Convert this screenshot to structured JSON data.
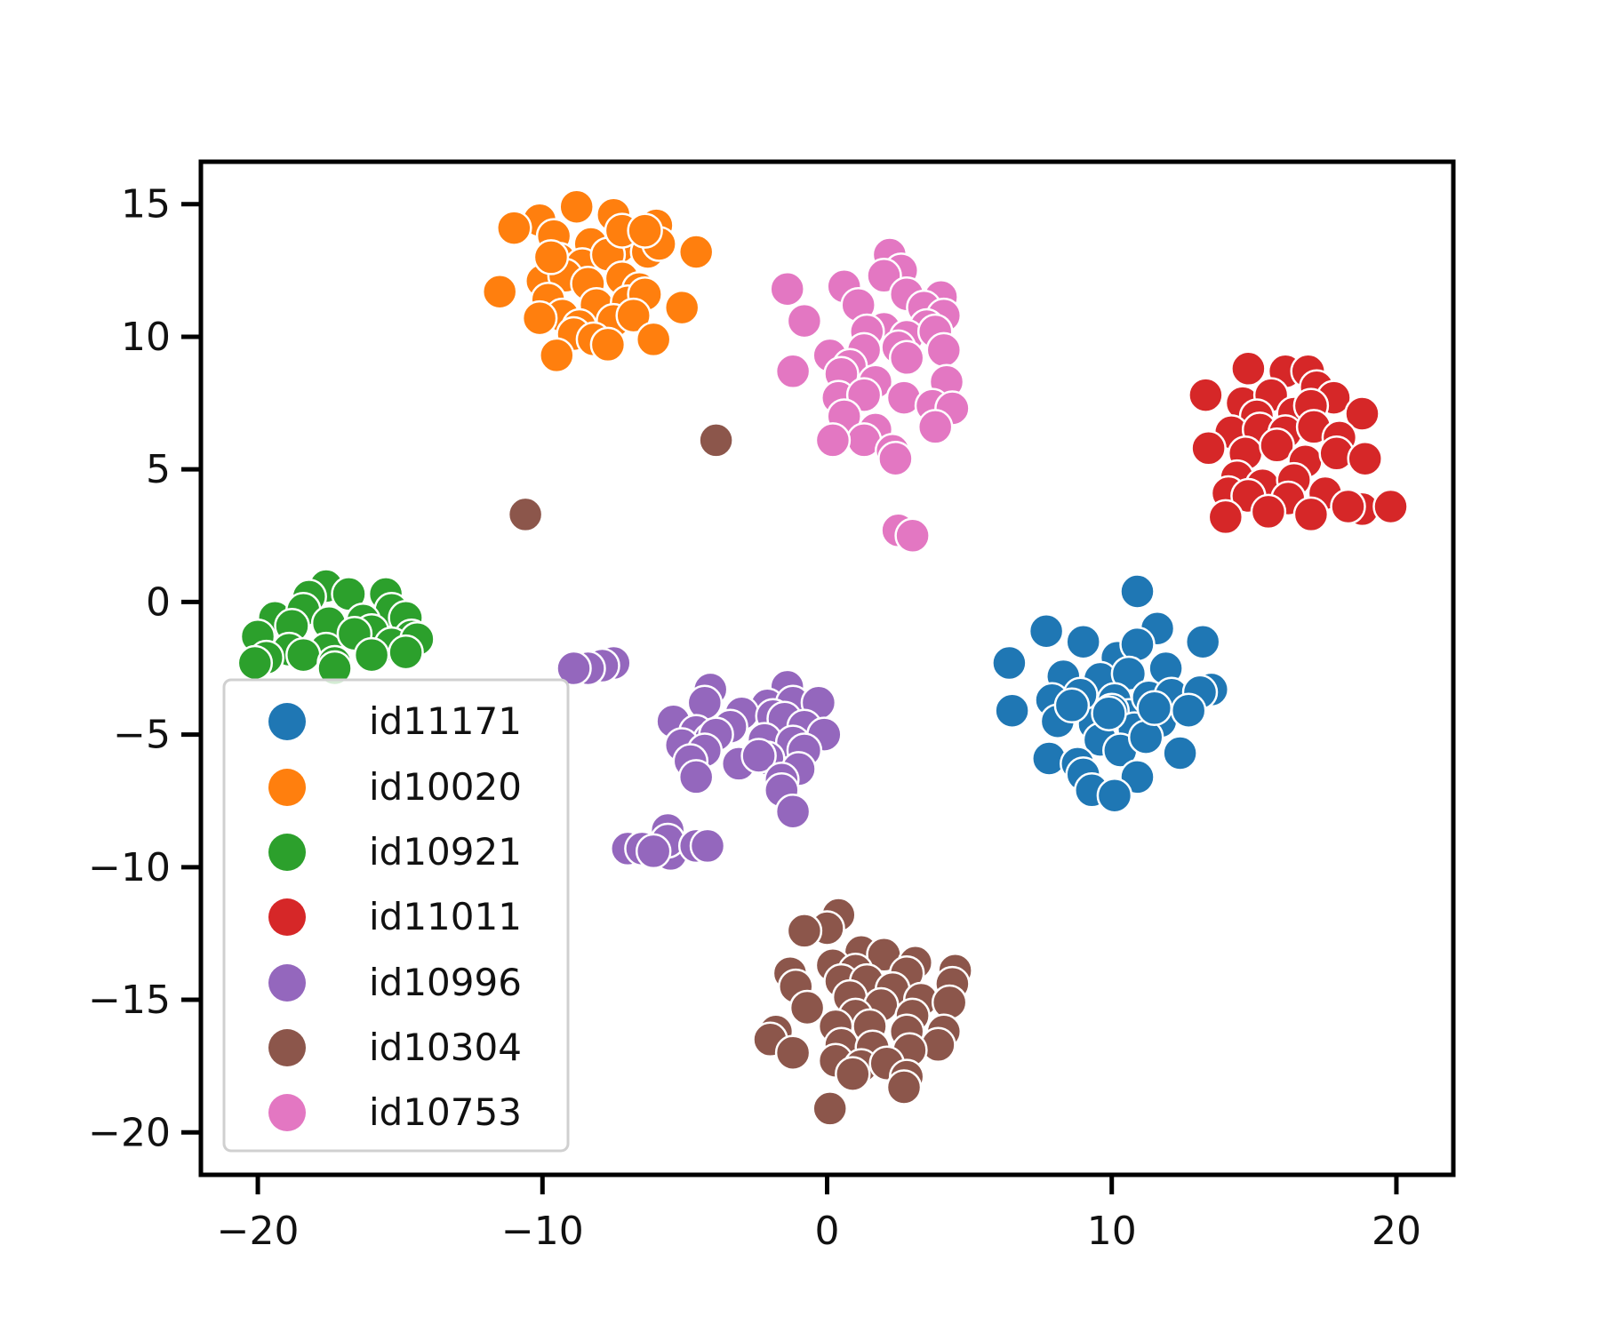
{
  "chart_data": {
    "type": "scatter",
    "title": "",
    "xlabel": "",
    "ylabel": "",
    "xlim": [
      -22,
      22
    ],
    "ylim": [
      -21.6,
      16.6
    ],
    "xticks": [
      -20,
      -10,
      0,
      10,
      20
    ],
    "yticks": [
      15,
      10,
      5,
      0,
      -5,
      -10,
      -15,
      -20
    ],
    "xtick_labels": [
      "−20",
      "−10",
      "0",
      "10",
      "20"
    ],
    "ytick_labels": [
      "15",
      "10",
      "5",
      "0",
      "−5",
      "−10",
      "−15",
      "−20"
    ],
    "grid": false,
    "legend_position": "lower-left",
    "series": [
      {
        "name": "id11171",
        "color": "#1f77b4",
        "points": [
          [
            10.9,
            0.4
          ],
          [
            11.6,
            -1.0
          ],
          [
            13.2,
            -1.5
          ],
          [
            7.7,
            -1.1
          ],
          [
            9.0,
            -1.5
          ],
          [
            10.2,
            -2.1
          ],
          [
            10.9,
            -1.6
          ],
          [
            6.4,
            -2.3
          ],
          [
            8.3,
            -2.8
          ],
          [
            9.6,
            -2.9
          ],
          [
            10.6,
            -2.7
          ],
          [
            11.9,
            -2.5
          ],
          [
            13.5,
            -3.3
          ],
          [
            7.9,
            -3.7
          ],
          [
            8.9,
            -3.5
          ],
          [
            10.1,
            -3.7
          ],
          [
            10.6,
            -4.3
          ],
          [
            11.3,
            -3.6
          ],
          [
            12.1,
            -3.5
          ],
          [
            13.1,
            -3.4
          ],
          [
            6.5,
            -4.1
          ],
          [
            8.1,
            -4.5
          ],
          [
            9.4,
            -4.6
          ],
          [
            10.0,
            -4.1
          ],
          [
            10.8,
            -4.8
          ],
          [
            11.7,
            -4.5
          ],
          [
            12.7,
            -4.1
          ],
          [
            9.6,
            -5.2
          ],
          [
            10.3,
            -5.6
          ],
          [
            11.2,
            -5.1
          ],
          [
            12.4,
            -5.7
          ],
          [
            7.8,
            -5.9
          ],
          [
            8.8,
            -6.1
          ],
          [
            9.0,
            -6.5
          ],
          [
            10.9,
            -6.6
          ],
          [
            9.3,
            -7.1
          ],
          [
            10.1,
            -7.3
          ],
          [
            9.9,
            -4.2
          ],
          [
            8.6,
            -3.9
          ],
          [
            11.5,
            -4.0
          ]
        ]
      },
      {
        "name": "id10020",
        "color": "#ff7f0e",
        "points": [
          [
            -8.8,
            14.9
          ],
          [
            -7.5,
            14.6
          ],
          [
            -10.1,
            14.4
          ],
          [
            -9.6,
            13.8
          ],
          [
            -6.0,
            14.2
          ],
          [
            -11.0,
            14.1
          ],
          [
            -8.3,
            13.5
          ],
          [
            -7.3,
            13.4
          ],
          [
            -6.3,
            13.2
          ],
          [
            -5.9,
            13.5
          ],
          [
            -4.6,
            13.2
          ],
          [
            -9.4,
            12.9
          ],
          [
            -8.6,
            12.7
          ],
          [
            -7.7,
            13.1
          ],
          [
            -10.0,
            12.1
          ],
          [
            -9.2,
            12.3
          ],
          [
            -8.4,
            12.0
          ],
          [
            -7.2,
            12.2
          ],
          [
            -6.6,
            11.8
          ],
          [
            -11.5,
            11.7
          ],
          [
            -9.8,
            11.4
          ],
          [
            -8.1,
            11.2
          ],
          [
            -7.0,
            11.3
          ],
          [
            -6.4,
            11.6
          ],
          [
            -5.1,
            11.1
          ],
          [
            -9.3,
            10.8
          ],
          [
            -8.7,
            10.4
          ],
          [
            -7.5,
            10.6
          ],
          [
            -6.8,
            10.8
          ],
          [
            -10.1,
            10.7
          ],
          [
            -8.9,
            10.1
          ],
          [
            -8.2,
            9.9
          ],
          [
            -6.1,
            9.9
          ],
          [
            -9.5,
            9.3
          ],
          [
            -7.7,
            9.7
          ],
          [
            -9.7,
            13.0
          ],
          [
            -7.2,
            14.0
          ],
          [
            -6.4,
            14.0
          ]
        ]
      },
      {
        "name": "id10921",
        "color": "#2ca02c",
        "points": [
          [
            -17.6,
            0.6
          ],
          [
            -16.8,
            0.3
          ],
          [
            -15.5,
            0.3
          ],
          [
            -18.2,
            0.2
          ],
          [
            -19.4,
            -0.6
          ],
          [
            -18.4,
            -0.3
          ],
          [
            -15.3,
            -0.3
          ],
          [
            -14.8,
            -0.6
          ],
          [
            -16.3,
            -0.7
          ],
          [
            -18.8,
            -0.9
          ],
          [
            -17.5,
            -0.8
          ],
          [
            -16.0,
            -1.1
          ],
          [
            -14.6,
            -1.3
          ],
          [
            -20.0,
            -1.3
          ],
          [
            -18.9,
            -1.8
          ],
          [
            -17.6,
            -1.8
          ],
          [
            -16.6,
            -1.2
          ],
          [
            -15.3,
            -1.6
          ],
          [
            -14.4,
            -1.4
          ],
          [
            -19.7,
            -2.1
          ],
          [
            -18.4,
            -2.0
          ],
          [
            -17.3,
            -2.3
          ],
          [
            -16.0,
            -2.0
          ],
          [
            -14.8,
            -1.9
          ],
          [
            -20.1,
            -2.3
          ],
          [
            -17.3,
            -2.5
          ]
        ]
      },
      {
        "name": "id11011",
        "color": "#d62728",
        "points": [
          [
            14.8,
            8.8
          ],
          [
            16.1,
            8.7
          ],
          [
            16.9,
            8.7
          ],
          [
            13.3,
            7.8
          ],
          [
            14.6,
            7.5
          ],
          [
            15.6,
            7.8
          ],
          [
            17.2,
            8.1
          ],
          [
            17.8,
            7.7
          ],
          [
            15.1,
            7.0
          ],
          [
            16.4,
            7.1
          ],
          [
            17.0,
            7.4
          ],
          [
            18.8,
            7.1
          ],
          [
            14.2,
            6.4
          ],
          [
            15.2,
            6.5
          ],
          [
            16.1,
            6.4
          ],
          [
            17.1,
            6.6
          ],
          [
            18.0,
            6.2
          ],
          [
            13.4,
            5.8
          ],
          [
            14.7,
            5.6
          ],
          [
            15.8,
            5.9
          ],
          [
            16.8,
            5.3
          ],
          [
            17.9,
            5.6
          ],
          [
            18.9,
            5.4
          ],
          [
            14.4,
            4.7
          ],
          [
            15.3,
            4.4
          ],
          [
            16.4,
            4.6
          ],
          [
            17.5,
            4.1
          ],
          [
            14.1,
            4.1
          ],
          [
            14.8,
            4.0
          ],
          [
            16.2,
            3.9
          ],
          [
            18.8,
            3.5
          ],
          [
            19.8,
            3.6
          ],
          [
            14.0,
            3.2
          ],
          [
            15.5,
            3.4
          ],
          [
            17.0,
            3.3
          ],
          [
            18.3,
            3.6
          ]
        ]
      },
      {
        "name": "id10996",
        "color": "#9467bd",
        "points": [
          [
            -7.5,
            -2.3
          ],
          [
            -7.9,
            -2.4
          ],
          [
            -8.4,
            -2.5
          ],
          [
            -8.9,
            -2.5
          ],
          [
            -4.1,
            -3.3
          ],
          [
            -1.4,
            -3.2
          ],
          [
            -4.3,
            -3.8
          ],
          [
            -2.1,
            -3.9
          ],
          [
            -1.2,
            -3.8
          ],
          [
            -0.3,
            -3.8
          ],
          [
            -3.0,
            -4.2
          ],
          [
            -1.9,
            -4.3
          ],
          [
            -1.5,
            -4.4
          ],
          [
            -5.4,
            -4.5
          ],
          [
            -4.6,
            -4.9
          ],
          [
            -3.4,
            -4.7
          ],
          [
            -0.8,
            -4.7
          ],
          [
            -4.1,
            -5.2
          ],
          [
            -3.9,
            -5.0
          ],
          [
            -0.1,
            -5.0
          ],
          [
            -2.2,
            -5.2
          ],
          [
            -1.2,
            -5.3
          ],
          [
            -5.1,
            -5.4
          ],
          [
            -4.3,
            -5.6
          ],
          [
            -2.1,
            -5.9
          ],
          [
            -0.8,
            -5.6
          ],
          [
            -4.8,
            -6.0
          ],
          [
            -3.1,
            -6.1
          ],
          [
            -2.4,
            -5.8
          ],
          [
            -1.0,
            -6.3
          ],
          [
            -4.6,
            -6.6
          ],
          [
            -1.6,
            -6.7
          ],
          [
            -1.6,
            -7.1
          ],
          [
            -1.2,
            -7.9
          ],
          [
            -5.6,
            -8.6
          ],
          [
            -7.0,
            -9.3
          ],
          [
            -6.5,
            -9.3
          ],
          [
            -5.5,
            -9.5
          ],
          [
            -5.6,
            -9.0
          ],
          [
            -4.6,
            -9.2
          ],
          [
            -4.2,
            -9.2
          ],
          [
            -6.1,
            -9.4
          ]
        ]
      },
      {
        "name": "id10304",
        "color": "#8c564b",
        "points": [
          [
            -3.9,
            6.1
          ],
          [
            -10.6,
            3.3
          ],
          [
            0.4,
            -11.8
          ],
          [
            0.0,
            -12.3
          ],
          [
            -0.8,
            -12.4
          ],
          [
            1.2,
            -13.2
          ],
          [
            2.0,
            -13.3
          ],
          [
            3.1,
            -13.6
          ],
          [
            0.2,
            -13.7
          ],
          [
            1.0,
            -13.9
          ],
          [
            2.8,
            -14.0
          ],
          [
            4.5,
            -13.9
          ],
          [
            -1.3,
            -14.0
          ],
          [
            0.5,
            -14.3
          ],
          [
            1.4,
            -14.3
          ],
          [
            2.3,
            -14.6
          ],
          [
            4.4,
            -14.4
          ],
          [
            -1.1,
            -14.5
          ],
          [
            0.8,
            -14.9
          ],
          [
            1.9,
            -15.2
          ],
          [
            3.3,
            -15.0
          ],
          [
            4.3,
            -15.1
          ],
          [
            -0.7,
            -15.3
          ],
          [
            1.0,
            -15.6
          ],
          [
            3.0,
            -15.6
          ],
          [
            -1.8,
            -16.2
          ],
          [
            0.3,
            -16.0
          ],
          [
            1.5,
            -16.0
          ],
          [
            2.8,
            -16.2
          ],
          [
            4.1,
            -16.2
          ],
          [
            -2.0,
            -16.5
          ],
          [
            0.5,
            -16.7
          ],
          [
            1.6,
            -16.8
          ],
          [
            3.9,
            -16.7
          ],
          [
            -1.2,
            -17.0
          ],
          [
            0.3,
            -17.3
          ],
          [
            1.2,
            -17.5
          ],
          [
            2.9,
            -16.9
          ],
          [
            0.9,
            -17.8
          ],
          [
            2.1,
            -17.4
          ],
          [
            2.8,
            -17.9
          ],
          [
            2.7,
            -18.3
          ],
          [
            0.1,
            -19.1
          ]
        ]
      },
      {
        "name": "id10753",
        "color": "#e377c2",
        "points": [
          [
            2.2,
            13.1
          ],
          [
            2.6,
            12.5
          ],
          [
            2.0,
            12.3
          ],
          [
            0.6,
            11.9
          ],
          [
            -1.4,
            11.8
          ],
          [
            2.8,
            11.6
          ],
          [
            4.0,
            11.5
          ],
          [
            1.1,
            11.2
          ],
          [
            3.4,
            11.1
          ],
          [
            4.1,
            10.8
          ],
          [
            -0.8,
            10.6
          ],
          [
            2.0,
            10.3
          ],
          [
            3.5,
            10.4
          ],
          [
            1.4,
            10.2
          ],
          [
            2.8,
            10.0
          ],
          [
            3.8,
            10.2
          ],
          [
            2.5,
            9.6
          ],
          [
            4.1,
            9.5
          ],
          [
            0.1,
            9.3
          ],
          [
            1.3,
            9.5
          ],
          [
            2.8,
            9.2
          ],
          [
            0.8,
            8.9
          ],
          [
            -1.2,
            8.7
          ],
          [
            0.5,
            8.6
          ],
          [
            1.7,
            8.3
          ],
          [
            4.2,
            8.3
          ],
          [
            0.4,
            7.7
          ],
          [
            1.3,
            7.8
          ],
          [
            2.7,
            7.7
          ],
          [
            3.7,
            7.4
          ],
          [
            4.4,
            7.3
          ],
          [
            0.6,
            7.0
          ],
          [
            3.8,
            6.6
          ],
          [
            1.7,
            6.5
          ],
          [
            1.3,
            6.1
          ],
          [
            0.2,
            6.1
          ],
          [
            2.3,
            5.7
          ],
          [
            2.4,
            5.4
          ],
          [
            2.5,
            2.7
          ],
          [
            3.0,
            2.5
          ]
        ]
      }
    ]
  }
}
